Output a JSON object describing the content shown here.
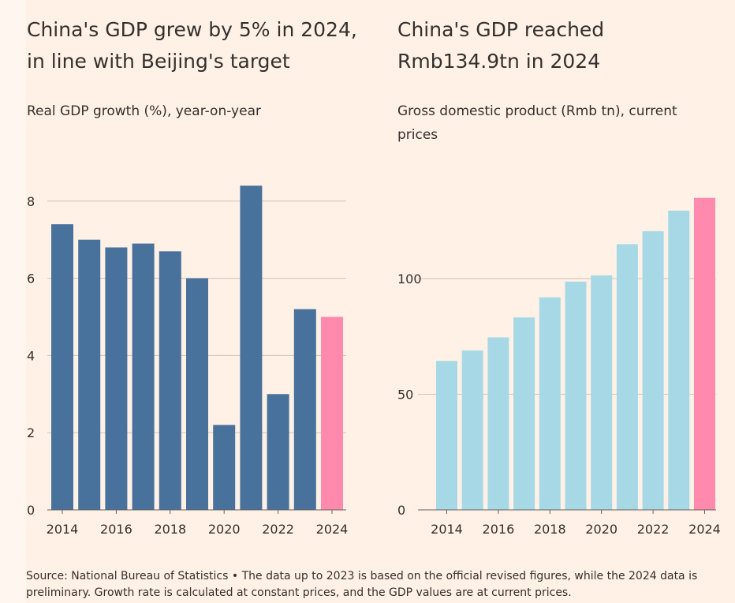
{
  "chart_data": [
    {
      "type": "bar",
      "title": "China's GDP grew by 5% in 2024, in line with Beijing's target",
      "subtitle": "Real GDP growth (%), year-on-year",
      "categories": [
        "2014",
        "2015",
        "2016",
        "2017",
        "2018",
        "2019",
        "2020",
        "2021",
        "2022",
        "2023",
        "2024"
      ],
      "values": [
        7.4,
        7.0,
        6.8,
        6.9,
        6.7,
        6.0,
        2.2,
        8.4,
        3.0,
        5.2,
        5.0
      ],
      "ylim": [
        0,
        8.4
      ],
      "yticks": [
        0,
        2,
        4,
        6,
        8
      ],
      "xtick_labels": [
        "2014",
        "2016",
        "2018",
        "2020",
        "2022",
        "2024"
      ],
      "grid": true,
      "colors": {
        "default": "#48719c",
        "highlight": "#ff8aae"
      },
      "highlight": "2024"
    },
    {
      "type": "bar",
      "title": "China's GDP reached Rmb134.9tn in 2024",
      "subtitle": "Gross domestic product (Rmb tn), current prices",
      "categories": [
        "2014",
        "2015",
        "2016",
        "2017",
        "2018",
        "2019",
        "2020",
        "2021",
        "2022",
        "2023",
        "2024"
      ],
      "values": [
        64.4,
        68.9,
        74.6,
        83.2,
        91.9,
        98.7,
        101.4,
        114.9,
        120.5,
        129.4,
        134.9
      ],
      "ylim": [
        0,
        135
      ],
      "yticks": [
        0,
        50,
        100
      ],
      "xtick_labels": [
        "2014",
        "2016",
        "2018",
        "2020",
        "2022",
        "2024"
      ],
      "grid": true,
      "colors": {
        "default": "#a7d8e6",
        "highlight": "#ff8aae"
      },
      "highlight": "2024"
    }
  ],
  "source": "Source: National Bureau of Statistics • The data up to 2023 is based on the official revised figures, while the 2024 data is preliminary. Growth rate is calculated at constant prices, and the GDP values are at current prices."
}
